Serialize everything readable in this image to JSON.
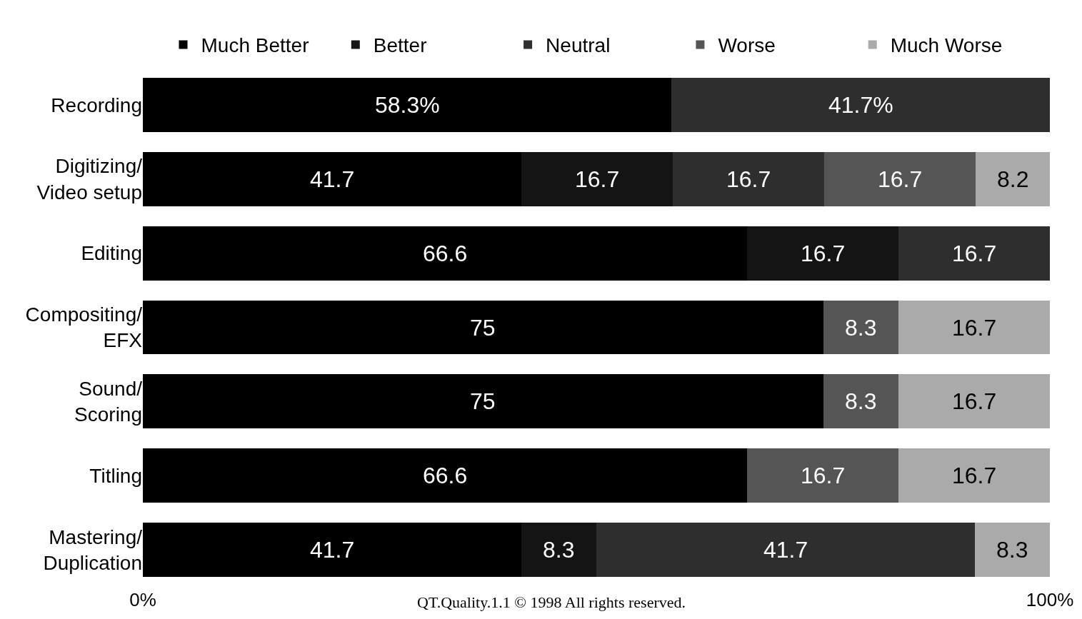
{
  "chart_data": {
    "type": "bar",
    "orientation": "horizontal",
    "stacked": true,
    "categories": [
      "Recording",
      "Digitizing/Video setup",
      "Editing",
      "Compositing/EFX",
      "Sound/Scoring",
      "Titling",
      "Mastering/Duplication"
    ],
    "series": [
      {
        "name": "Much Better",
        "color": "#000000",
        "values": [
          58.3,
          41.7,
          66.6,
          75,
          75,
          66.6,
          41.7
        ],
        "value_labels": [
          "58.3%",
          "41.7",
          "66.6",
          "75",
          "75",
          "66.6",
          "41.7"
        ]
      },
      {
        "name": "Better",
        "color": "#141414",
        "values": [
          null,
          16.7,
          16.7,
          null,
          null,
          null,
          8.3
        ],
        "value_labels": [
          null,
          "16.7",
          "16.7",
          null,
          null,
          null,
          "8.3"
        ]
      },
      {
        "name": "Neutral",
        "color": "#2e2e2e",
        "values": [
          41.7,
          16.7,
          16.7,
          null,
          null,
          null,
          41.7
        ],
        "value_labels": [
          "41.7%",
          "16.7",
          "16.7",
          null,
          null,
          null,
          "41.7"
        ]
      },
      {
        "name": "Worse",
        "color": "#555555",
        "values": [
          null,
          16.7,
          null,
          8.3,
          8.3,
          16.7,
          null
        ],
        "value_labels": [
          null,
          "16.7",
          null,
          "8.3",
          "8.3",
          "16.7",
          null
        ]
      },
      {
        "name": "Much Worse",
        "color": "#aaaaaa",
        "values": [
          null,
          8.2,
          null,
          16.7,
          16.7,
          16.7,
          8.3
        ],
        "value_labels": [
          null,
          "8.2",
          null,
          "16.7",
          "16.7",
          "16.7",
          "8.3"
        ]
      }
    ],
    "xlim": [
      0,
      100
    ],
    "xticks": [
      {
        "value": 0,
        "label": "0%"
      },
      {
        "value": 100,
        "label": "100%"
      }
    ],
    "legend": "top",
    "annotations": [
      "QT.Quality.1.1 © 1998 All rights reserved."
    ]
  }
}
